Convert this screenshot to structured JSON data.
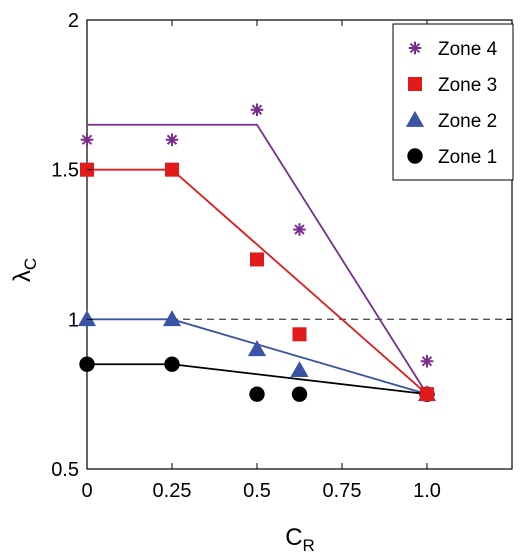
{
  "chart_data": {
    "type": "scatter",
    "title": "",
    "xlabel_main": "C",
    "xlabel_sub": "R",
    "ylabel_main": "λ",
    "ylabel_sub": "C",
    "xlim": [
      0,
      1.25
    ],
    "ylim": [
      0.5,
      2
    ],
    "xticks": [
      0,
      0.25,
      0.5,
      0.75,
      1.0
    ],
    "xtick_labels": [
      "0",
      "0.25",
      "0.5",
      "0.75",
      "1.0"
    ],
    "yticks": [
      0.5,
      1,
      1.5,
      2
    ],
    "ytick_labels": [
      "0.5",
      "1",
      "1.5",
      "2"
    ],
    "grid": false,
    "legend_position": "top-right",
    "reference_line": {
      "y": 1,
      "style": "dashed",
      "color": "#555555"
    },
    "series": [
      {
        "name": "Zone 4",
        "marker": "asterisk",
        "color": "#7b2d8e",
        "points": [
          [
            0,
            1.6
          ],
          [
            0.25,
            1.6
          ],
          [
            0.5,
            1.7
          ],
          [
            0.625,
            1.3
          ],
          [
            1.0,
            0.86
          ]
        ],
        "fit_line": [
          [
            0,
            1.65
          ],
          [
            0.5,
            1.65
          ],
          [
            1.0,
            0.75
          ]
        ]
      },
      {
        "name": "Zone 3",
        "marker": "square",
        "color": "#e31a1c",
        "points": [
          [
            0,
            1.5
          ],
          [
            0.25,
            1.5
          ],
          [
            0.5,
            1.2
          ],
          [
            0.625,
            0.95
          ],
          [
            1.0,
            0.75
          ]
        ],
        "fit_line": [
          [
            0,
            1.5
          ],
          [
            0.25,
            1.5
          ],
          [
            1.0,
            0.75
          ]
        ]
      },
      {
        "name": "Zone 2",
        "marker": "triangle",
        "color": "#3a53a4",
        "points": [
          [
            0,
            1.0
          ],
          [
            0.25,
            1.0
          ],
          [
            0.5,
            0.9
          ],
          [
            0.625,
            0.83
          ],
          [
            1.0,
            0.75
          ]
        ],
        "fit_line": [
          [
            0,
            1.0
          ],
          [
            0.25,
            1.0
          ],
          [
            1.0,
            0.75
          ]
        ]
      },
      {
        "name": "Zone 1",
        "marker": "circle",
        "color": "#000000",
        "points": [
          [
            0,
            0.85
          ],
          [
            0.25,
            0.85
          ],
          [
            0.5,
            0.75
          ],
          [
            0.625,
            0.75
          ],
          [
            1.0,
            0.75
          ]
        ],
        "fit_line": [
          [
            0,
            0.85
          ],
          [
            0.25,
            0.85
          ],
          [
            1.0,
            0.75
          ]
        ]
      }
    ]
  }
}
